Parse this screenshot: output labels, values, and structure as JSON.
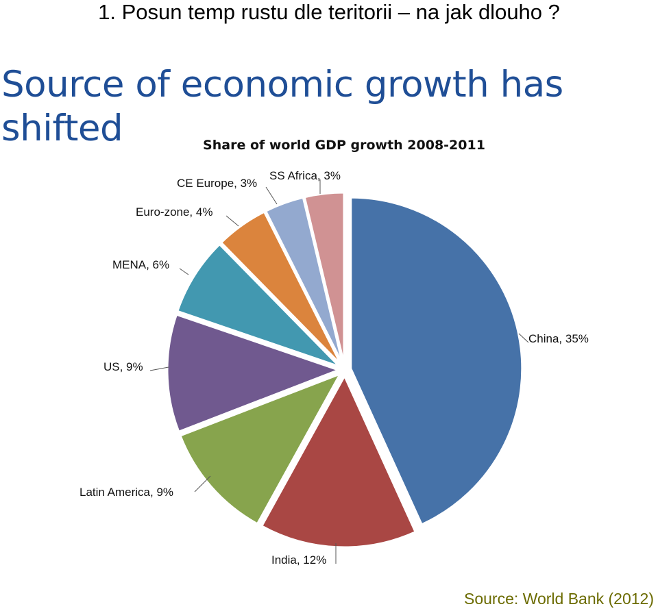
{
  "slide_title": "1. Posun temp rustu dle teritorii – na jak dlouho ?",
  "headline": "Source of economic growth has shifted",
  "source": "Source: World Bank  (2012)",
  "chart_data": {
    "type": "pie",
    "title": "Share of world GDP growth 2008-2011",
    "slices": [
      {
        "label": "China",
        "value": 35,
        "value_label": "35%",
        "color": "#4672a8"
      },
      {
        "label": "India",
        "value": 12,
        "value_label": "12%",
        "color": "#a94744"
      },
      {
        "label": "Latin America",
        "value": 9,
        "value_label": "9%",
        "color": "#87a44d"
      },
      {
        "label": "US",
        "value": 9,
        "value_label": "9%",
        "color": "#70598f"
      },
      {
        "label": "MENA",
        "value": 6,
        "value_label": "6%",
        "color": "#4298b0"
      },
      {
        "label": "Euro-zone",
        "value": 4,
        "value_label": "4%",
        "color": "#db843d"
      },
      {
        "label": "CE Europe",
        "value": 3,
        "value_label": "3%",
        "color": "#93a9cf"
      },
      {
        "label": "SS Africa",
        "value": 3,
        "value_label": "3%",
        "color": "#d09293"
      }
    ]
  }
}
